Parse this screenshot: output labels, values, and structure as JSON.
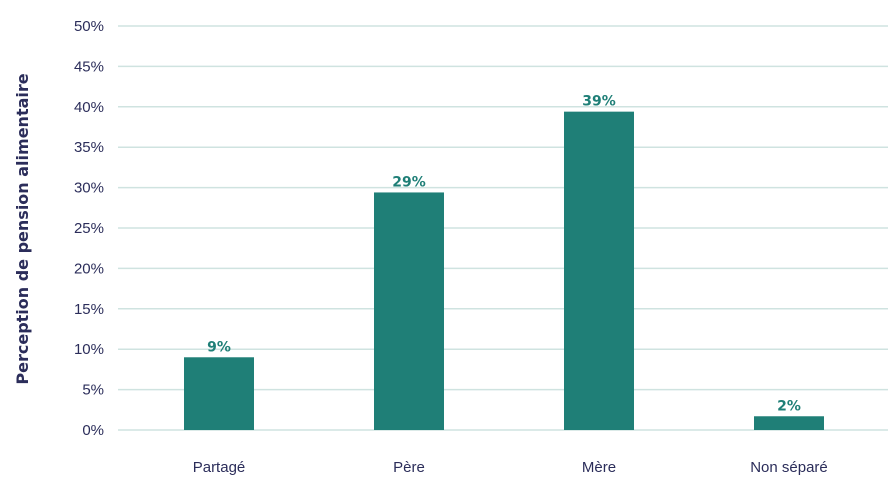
{
  "chart_data": {
    "type": "bar",
    "title": "",
    "xlabel": "",
    "ylabel": "Perception de pension alimentaire",
    "categories": [
      "Partagé",
      "Père",
      "Mère",
      "Non séparé"
    ],
    "values": [
      9,
      29.4,
      39.4,
      1.7
    ],
    "data_labels": [
      "9%",
      "29%",
      "39%",
      "2%"
    ],
    "ylim": [
      0,
      50
    ],
    "yticks": [
      0,
      5,
      10,
      15,
      20,
      25,
      30,
      35,
      40,
      45,
      50
    ],
    "ytick_labels": [
      "0%",
      "5%",
      "10%",
      "15%",
      "20%",
      "25%",
      "30%",
      "35%",
      "40%",
      "45%",
      "50%"
    ],
    "grid": true,
    "legend": "none",
    "bar_color": "#1f7f77",
    "label_color": "#1f7f77",
    "text_color": "#2b2d5a",
    "grid_color": "#cfe3e0"
  }
}
